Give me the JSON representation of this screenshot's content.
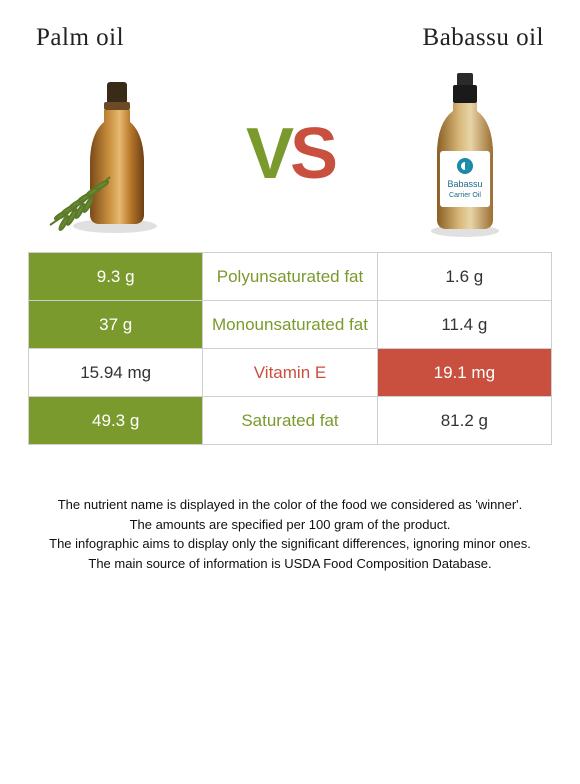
{
  "left_name": "Palm oil",
  "right_name": "Babassu oil",
  "vs_left_color": "#7b9a2e",
  "vs_right_color": "#c94f3f",
  "row_bg_win_left": "#7b9a2e",
  "row_bg_win_right": "#c94f3f",
  "border_color": "#cfcfcf",
  "text_color": "#111111",
  "font_title": "Georgia",
  "title_fontsize_pt": 19,
  "body_fontsize_pt": 13,
  "footer_fontsize_pt": 10,
  "nutrients": [
    {
      "name": "Polyunsaturated fat",
      "left": "9.3 g",
      "right": "1.6 g",
      "winner": "left"
    },
    {
      "name": "Monounsaturated fat",
      "left": "37 g",
      "right": "11.4 g",
      "winner": "left"
    },
    {
      "name": "Vitamin E",
      "left": "15.94 mg",
      "right": "19.1 mg",
      "winner": "right"
    },
    {
      "name": "Saturated fat",
      "left": "49.3 g",
      "right": "81.2 g",
      "winner": "left"
    }
  ],
  "footer_lines": [
    "The nutrient name is displayed in the color of the food we considered as 'winner'.",
    "The amounts are specified per 100 gram of the product.",
    "The infographic aims to display only the significant differences, ignoring minor ones.",
    "The main source of information is USDA Food Composition Database."
  ],
  "right_bottle_label_top": "Babassu",
  "right_bottle_label_bottom": "Carrier Oil"
}
